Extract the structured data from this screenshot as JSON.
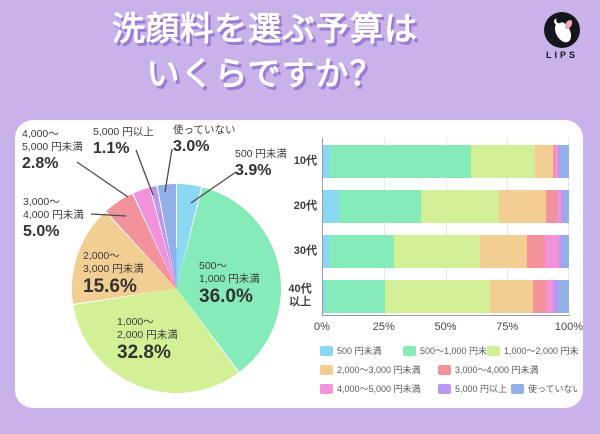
{
  "header": {
    "title_line1": "洗顔料を選ぶ予算は",
    "title_line2": "いくらですか？",
    "logo_text": "LIPS"
  },
  "colors": {
    "background": "#c9b2e9",
    "panel": "#ffffff",
    "title": "#ffffff",
    "title_shadow": "#9b7bd4",
    "text_dark": "#3a3a3a",
    "axis": "#9a9aa6"
  },
  "categories": [
    {
      "label": "500 円未満",
      "color": "#8bd8f4"
    },
    {
      "label": "500～1,000 円未満",
      "color": "#85ecb9"
    },
    {
      "label": "1,000～2,000 円未満",
      "color": "#d2f096"
    },
    {
      "label": "2,000～3,000 円未満",
      "color": "#f3ce93"
    },
    {
      "label": "3,000～4,000 円未満",
      "color": "#f2939c"
    },
    {
      "label": "4,000～5,000 円未満",
      "color": "#f292db"
    },
    {
      "label": "5,000 円以上",
      "color": "#bc97f0"
    },
    {
      "label": "使っていない",
      "color": "#93afe9"
    }
  ],
  "chart_data": [
    {
      "type": "pie",
      "title": "洗顔料を選ぶ予算はいくらですか？",
      "labels": [
        "500 円未満",
        "500～1,000 円未満",
        "1,000～2,000 円未満",
        "2,000～3,000 円未満",
        "3,000～4,000 円未満",
        "4,000～5,000 円未満",
        "5,000 円以上",
        "使っていない"
      ],
      "values": [
        3.9,
        36.0,
        32.8,
        15.6,
        5.0,
        2.8,
        1.1,
        3.0
      ],
      "unit": "%",
      "start_angle": "top",
      "direction": "clockwise"
    },
    {
      "type": "bar",
      "stacked": true,
      "orientation": "horizontal",
      "categories": [
        "10代",
        "20代",
        "30代",
        "40代以上"
      ],
      "x_ticks": [
        "0%",
        "25%",
        "50%",
        "75%",
        "100%"
      ],
      "xlim": [
        0,
        100
      ],
      "series": [
        {
          "name": "500 円未満",
          "values": [
            3.0,
            6.5,
            2.9,
            0.8
          ]
        },
        {
          "name": "500～1,000 円未満",
          "values": [
            57.2,
            33.5,
            25.9,
            24.5
          ]
        },
        {
          "name": "1,000～2,000 円未満",
          "values": [
            25.8,
            31.5,
            35.0,
            42.4
          ]
        },
        {
          "name": "2,000～3,000 円未満",
          "values": [
            7.7,
            19.0,
            19.3,
            17.5
          ]
        },
        {
          "name": "3,000～4,000 円未満",
          "values": [
            0.6,
            4.8,
            7.0,
            6.0
          ]
        },
        {
          "name": "4,000～5,000 円未満",
          "values": [
            1.4,
            1.6,
            6.0,
            2.4
          ]
        },
        {
          "name": "5,000 円以上",
          "values": [
            0.5,
            1.2,
            1.2,
            2.0
          ]
        },
        {
          "name": "使っていない",
          "values": [
            3.8,
            1.9,
            2.7,
            4.4
          ]
        }
      ],
      "legend_position": "bottom"
    }
  ],
  "pie_labels": [
    {
      "lines": [
        "500 円未満"
      ],
      "pct": "3.9%"
    },
    {
      "lines": [
        "500～",
        "1,000 円未満"
      ],
      "pct": "36.0%"
    },
    {
      "lines": [
        "1,000～",
        "2,000 円未満"
      ],
      "pct": "32.8%"
    },
    {
      "lines": [
        "2,000～",
        "3,000 円未満"
      ],
      "pct": "15.6%"
    },
    {
      "lines": [
        "3,000～",
        "4,000 円未満"
      ],
      "pct": "5.0%"
    },
    {
      "lines": [
        "4,000～",
        "5,000 円未満"
      ],
      "pct": "2.8%"
    },
    {
      "lines": [
        "5,000 円以上"
      ],
      "pct": "1.1%"
    },
    {
      "lines": [
        "使っていない"
      ],
      "pct": "3.0%"
    }
  ],
  "legend": {
    "rows": [
      [
        0,
        1,
        2
      ],
      [
        3,
        4
      ],
      [
        5,
        6,
        7
      ]
    ]
  }
}
